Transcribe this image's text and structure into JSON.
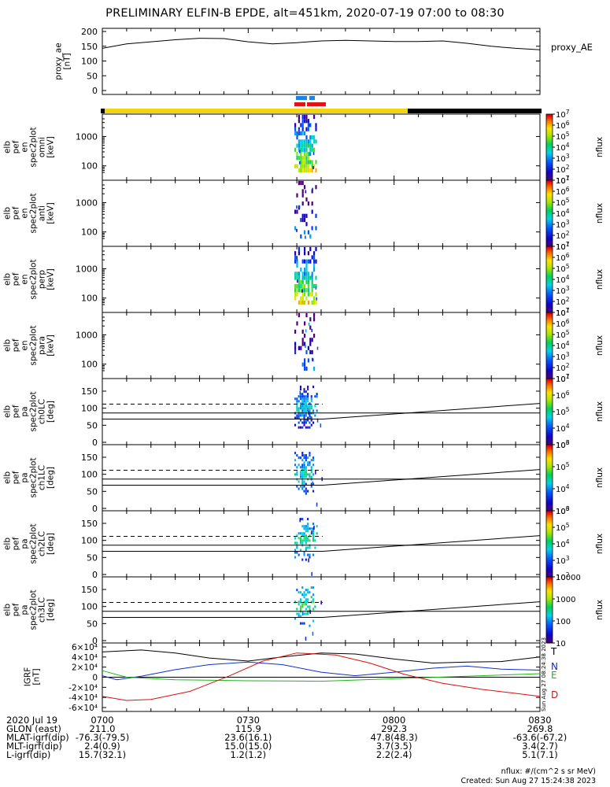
{
  "title": "PRELIMINARY ELFIN-B EPDE, alt=451km, 2020-07-19 07:00 to 08:30",
  "footer": {
    "units_note": "nflux: #/(cm^2 s sr MeV)",
    "created": "Created: Sun Aug 27 15:24:38 2023"
  },
  "side_stamp": "Sun Aug 27 08:24:38 2023",
  "colors": {
    "axis": "#000000",
    "state_sun": "#f2d410",
    "state_shadow": "#000000",
    "science_blue": "#1a84e6",
    "science_red": "#e01414",
    "grf_t": "#000000",
    "grf_n": "#1030c8",
    "grf_e": "#1ab81a",
    "grf_d": "#d81010"
  },
  "orbit_table": {
    "rows": [
      {
        "label": "2020 Jul 19",
        "values": [
          "0700",
          "0730",
          "0800",
          "0830"
        ]
      },
      {
        "label": "GLON (east)",
        "values": [
          "211.0",
          "115.9",
          "292.3",
          "269.8"
        ]
      },
      {
        "label": "MLAT-igrf(dip)",
        "values": [
          "-76.3(-79.5)",
          "23.6(16.1)",
          "47.8(48.3)",
          "-63.6(-67.2)"
        ]
      },
      {
        "label": "MLT-igrf(dip)",
        "values": [
          "2.4(0.9)",
          "15.0(15.0)",
          "3.7(3.5)",
          "3.4(2.7)"
        ]
      },
      {
        "label": "L-igrf(dip)",
        "values": [
          "15.7(32.1)",
          "1.2(1.2)",
          "2.2(2.4)",
          "5.1(7.1)"
        ]
      }
    ]
  },
  "chart_data": [
    {
      "type": "line",
      "name": "proxy_ae",
      "ylabel": [
        "proxy_ae",
        "[nT]"
      ],
      "legend": "proxy_AE",
      "ylim": [
        0,
        200
      ],
      "yticks": [
        "0",
        "50",
        "100",
        "150",
        "200"
      ],
      "x_minutes": [
        0,
        5,
        10,
        15,
        20,
        25,
        30,
        35,
        40,
        45,
        50,
        55,
        60,
        65,
        70,
        75,
        80,
        85,
        90
      ],
      "y": [
        143,
        158,
        165,
        172,
        177,
        176,
        165,
        158,
        162,
        168,
        170,
        168,
        166,
        166,
        168,
        160,
        150,
        143,
        138
      ]
    },
    {
      "type": "heatmap",
      "name": "spec_omni",
      "ylabel": [
        "elb",
        "pef",
        "en",
        "spec2plot",
        "omni",
        "[keV]"
      ],
      "scale": "log",
      "yticks": [
        "100",
        "1000"
      ],
      "colorbar": {
        "label": "nflux",
        "ticks": [
          "10^1",
          "10^2",
          "10^3",
          "10^4",
          "10^5",
          "10^6",
          "10^7"
        ]
      }
    },
    {
      "type": "heatmap",
      "name": "spec_anti",
      "ylabel": [
        "elb",
        "pef",
        "en",
        "spec2plot",
        "anti",
        "[keV]"
      ],
      "scale": "log",
      "yticks": [
        "100",
        "1000"
      ],
      "colorbar": {
        "label": "nflux",
        "ticks": [
          "10^1",
          "10^2",
          "10^3",
          "10^4",
          "10^5",
          "10^6",
          "10^7"
        ]
      }
    },
    {
      "type": "heatmap",
      "name": "spec_perp",
      "ylabel": [
        "elb",
        "pef",
        "en",
        "spec2plot",
        "perp",
        "[keV]"
      ],
      "scale": "log",
      "yticks": [
        "100",
        "1000"
      ],
      "colorbar": {
        "label": "nflux",
        "ticks": [
          "10^1",
          "10^2",
          "10^3",
          "10^4",
          "10^5",
          "10^6",
          "10^7"
        ]
      }
    },
    {
      "type": "heatmap",
      "name": "spec_para",
      "ylabel": [
        "elb",
        "pef",
        "en",
        "spec2plot",
        "para",
        "[keV]"
      ],
      "scale": "log",
      "yticks": [
        "100",
        "1000"
      ],
      "colorbar": {
        "label": "nflux",
        "ticks": [
          "10^1",
          "10^2",
          "10^3",
          "10^4",
          "10^5",
          "10^6",
          "10^7"
        ]
      }
    },
    {
      "type": "heatmap",
      "name": "pa_ch0",
      "ylabel": [
        "elb",
        "pef",
        "pa",
        "spec2plot",
        "ch0LC",
        "[deg]"
      ],
      "ylim": [
        0,
        180
      ],
      "yticks": [
        "0",
        "50",
        "100",
        "150"
      ],
      "colorbar": {
        "label": "nflux",
        "ticks": [
          "10^3",
          "10^4",
          "10^5",
          "10^6",
          "10^7"
        ]
      }
    },
    {
      "type": "heatmap",
      "name": "pa_ch1",
      "ylabel": [
        "elb",
        "pef",
        "pa",
        "spec2plot",
        "ch1LC",
        "[deg]"
      ],
      "ylim": [
        0,
        180
      ],
      "yticks": [
        "0",
        "50",
        "100",
        "150"
      ],
      "colorbar": {
        "label": "nflux",
        "ticks": [
          "10^3",
          "10^4",
          "10^5",
          "10^6"
        ]
      }
    },
    {
      "type": "heatmap",
      "name": "pa_ch2",
      "ylabel": [
        "elb",
        "pef",
        "pa",
        "spec2plot",
        "ch2LC",
        "[deg]"
      ],
      "ylim": [
        0,
        180
      ],
      "yticks": [
        "0",
        "50",
        "100",
        "150"
      ],
      "colorbar": {
        "label": "nflux",
        "ticks": [
          "10^2",
          "10^3",
          "10^4",
          "10^5",
          "10^6"
        ]
      }
    },
    {
      "type": "heatmap",
      "name": "pa_ch3",
      "ylabel": [
        "elb",
        "pef",
        "pa",
        "spec2plot",
        "ch3LC",
        "[deg]"
      ],
      "ylim": [
        0,
        180
      ],
      "yticks": [
        "0",
        "50",
        "100",
        "150"
      ],
      "colorbar": {
        "label": "nflux",
        "ticks": [
          "10",
          "100",
          "1000",
          "10000"
        ]
      }
    },
    {
      "type": "line",
      "name": "igrf",
      "ylabel": [
        "IGRF",
        "[nT]"
      ],
      "ylim": [
        -60000,
        60000
      ],
      "yticks": [
        "-6×10⁴",
        "-4×10⁴",
        "-2×10⁴",
        "0",
        "2×10⁴",
        "4×10⁴",
        "6×10⁴"
      ],
      "series": [
        {
          "name": "T",
          "x_minutes": [
            0,
            8,
            15,
            22,
            30,
            37,
            45,
            52,
            60,
            68,
            75,
            82,
            90
          ],
          "y": [
            50000,
            54000,
            48000,
            38000,
            32000,
            40000,
            48000,
            46000,
            36000,
            28000,
            30000,
            31000,
            40000
          ]
        },
        {
          "name": "N",
          "x_minutes": [
            0,
            3,
            8,
            15,
            22,
            30,
            37,
            45,
            52,
            60,
            68,
            75,
            82,
            90
          ],
          "y": [
            3000,
            -5000,
            2000,
            15000,
            25000,
            30000,
            25000,
            10000,
            3000,
            10000,
            18000,
            22000,
            16000,
            14000
          ]
        },
        {
          "name": "E",
          "x_minutes": [
            0,
            5,
            15,
            30,
            45,
            60,
            75,
            90
          ],
          "y": [
            13000,
            0,
            -5000,
            -7000,
            -8000,
            -3000,
            2000,
            7000
          ]
        },
        {
          "name": "D",
          "x_minutes": [
            0,
            5,
            10,
            18,
            26,
            33,
            40,
            48,
            55,
            62,
            70,
            78,
            85,
            90
          ],
          "y": [
            -38000,
            -46000,
            -44000,
            -28000,
            2000,
            32000,
            48000,
            44000,
            28000,
            6000,
            -12000,
            -24000,
            -32000,
            -38000
          ]
        }
      ]
    }
  ]
}
